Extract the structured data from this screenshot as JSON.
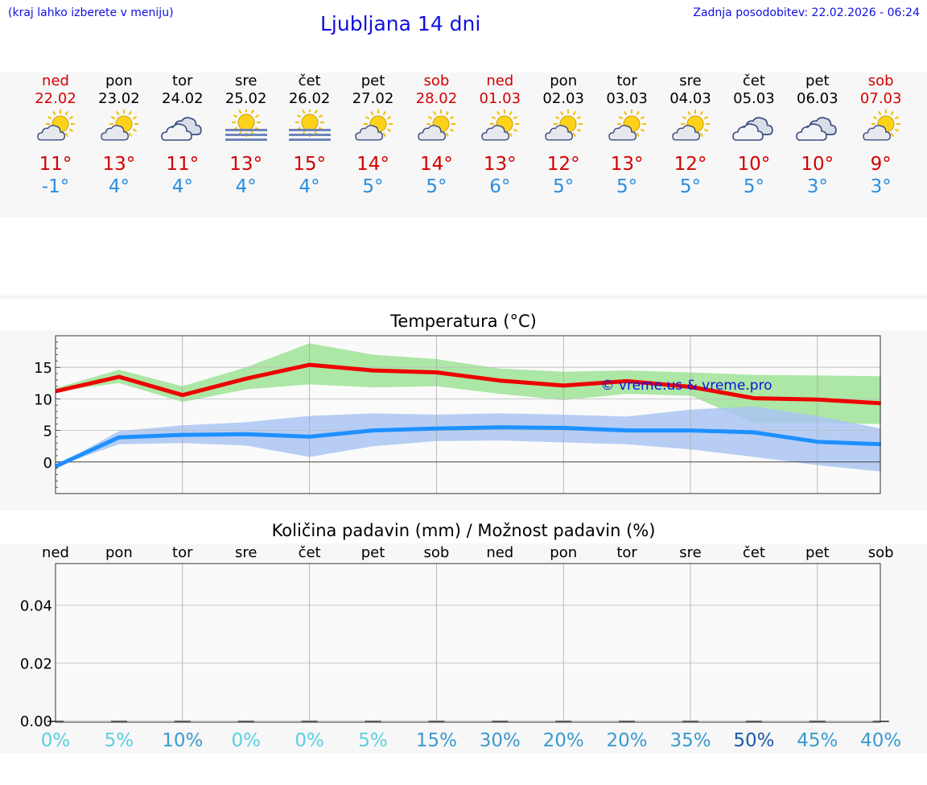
{
  "header": {
    "left_note": "(kraj lahko izberete v meniju)",
    "title": "Ljubljana 14 dni",
    "updated": "Zadnja posodobitev: 22.02.2026 - 06:24"
  },
  "days": [
    {
      "name": "ned",
      "date": "22.02",
      "icon": "sun-cloud-icon",
      "max": "11°",
      "min": "-1°",
      "weekend": true
    },
    {
      "name": "pon",
      "date": "23.02",
      "icon": "sun-cloud-icon",
      "max": "13°",
      "min": "4°",
      "weekend": false
    },
    {
      "name": "tor",
      "date": "24.02",
      "icon": "cloudy-icon",
      "max": "11°",
      "min": "4°",
      "weekend": false
    },
    {
      "name": "sre",
      "date": "25.02",
      "icon": "sun-fog-icon",
      "max": "13°",
      "min": "4°",
      "weekend": false
    },
    {
      "name": "čet",
      "date": "26.02",
      "icon": "sun-fog-icon",
      "max": "15°",
      "min": "4°",
      "weekend": false
    },
    {
      "name": "pet",
      "date": "27.02",
      "icon": "sun-cloud-icon",
      "max": "14°",
      "min": "5°",
      "weekend": false
    },
    {
      "name": "sob",
      "date": "28.02",
      "icon": "sun-cloud-icon",
      "max": "14°",
      "min": "5°",
      "weekend": true
    },
    {
      "name": "ned",
      "date": "01.03",
      "icon": "sun-cloud-icon",
      "max": "13°",
      "min": "6°",
      "weekend": true
    },
    {
      "name": "pon",
      "date": "02.03",
      "icon": "sun-cloud-icon",
      "max": "12°",
      "min": "5°",
      "weekend": false
    },
    {
      "name": "tor",
      "date": "03.03",
      "icon": "sun-cloud-icon",
      "max": "13°",
      "min": "5°",
      "weekend": false
    },
    {
      "name": "sre",
      "date": "04.03",
      "icon": "sun-cloud-icon",
      "max": "12°",
      "min": "5°",
      "weekend": false
    },
    {
      "name": "čet",
      "date": "05.03",
      "icon": "cloudy-icon",
      "max": "10°",
      "min": "5°",
      "weekend": false
    },
    {
      "name": "pet",
      "date": "06.03",
      "icon": "cloudy-icon",
      "max": "10°",
      "min": "3°",
      "weekend": false
    },
    {
      "name": "sob",
      "date": "07.03",
      "icon": "sun-cloud-icon",
      "max": "9°",
      "min": "3°",
      "weekend": true
    }
  ],
  "colors": {
    "max_line": "#ee0000",
    "min_line": "#1e90ff",
    "max_band": "#a8e6a0",
    "min_band": "#aac4f2",
    "title_blue": "#1010e0"
  },
  "chart_data": [
    {
      "type": "line",
      "title": "Temperatura (°C)",
      "watermark": "© vreme.us & vreme.pro",
      "x": [
        0,
        1,
        2,
        3,
        4,
        5,
        6,
        7,
        8,
        9,
        10,
        11,
        12,
        13
      ],
      "ylim": [
        -5,
        20
      ],
      "yticks": [
        0,
        5,
        10,
        15
      ],
      "series": [
        {
          "name": "max",
          "values": [
            11.2,
            13.5,
            10.6,
            13.2,
            15.4,
            14.5,
            14.2,
            12.9,
            12.1,
            12.8,
            11.9,
            10.1,
            9.9,
            9.3
          ]
        },
        {
          "name": "min",
          "values": [
            -0.7,
            3.9,
            4.3,
            4.4,
            4.0,
            5.0,
            5.3,
            5.5,
            5.4,
            5.0,
            5.0,
            4.7,
            3.2,
            2.8
          ]
        }
      ],
      "bands": [
        {
          "name": "max_range",
          "low": [
            11.2,
            12.5,
            9.5,
            11.5,
            12.3,
            11.8,
            12.0,
            10.8,
            9.8,
            10.8,
            10.5,
            6.2,
            6.2,
            6.0
          ],
          "high": [
            11.7,
            14.6,
            12.0,
            15.0,
            18.8,
            17.0,
            16.3,
            14.8,
            14.3,
            14.5,
            14.2,
            13.8,
            13.7,
            13.6
          ]
        },
        {
          "name": "min_range",
          "low": [
            -0.7,
            2.8,
            3.0,
            2.6,
            0.8,
            2.5,
            3.3,
            3.4,
            3.1,
            2.8,
            2.0,
            0.8,
            -0.5,
            -1.5
          ],
          "high": [
            -0.7,
            4.9,
            5.8,
            6.3,
            7.3,
            7.7,
            7.5,
            7.7,
            7.5,
            7.2,
            8.3,
            8.8,
            7.3,
            5.3
          ]
        }
      ]
    },
    {
      "type": "bar",
      "title": "Količina padavin (mm) / Možnost padavin (%)",
      "categories": [
        "ned",
        "pon",
        "tor",
        "sre",
        "čet",
        "pet",
        "sob",
        "ned",
        "pon",
        "tor",
        "sre",
        "čet",
        "pet",
        "sob"
      ],
      "values": [
        0,
        0,
        0,
        0,
        0,
        0,
        0,
        0,
        0,
        0,
        0,
        0,
        0,
        0
      ],
      "ylim": [
        0,
        0.055
      ],
      "yticks": [
        "0.00",
        "0.02",
        "0.04"
      ],
      "probabilities": [
        "0%",
        "5%",
        "10%",
        "0%",
        "0%",
        "5%",
        "15%",
        "30%",
        "20%",
        "20%",
        "35%",
        "50%",
        "45%",
        "40%"
      ],
      "probability_values": [
        0,
        5,
        10,
        0,
        0,
        5,
        15,
        30,
        20,
        20,
        35,
        50,
        45,
        40
      ]
    }
  ]
}
